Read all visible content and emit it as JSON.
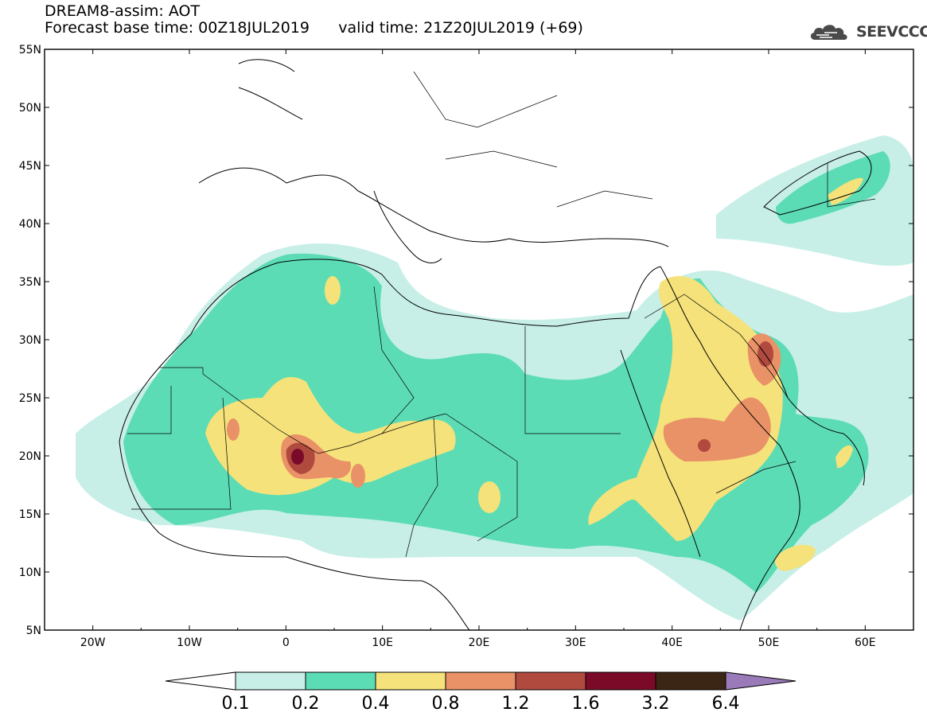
{
  "header": {
    "model_title": "DREAM8-assim: AOT",
    "base_time": "Forecast base time: 00Z18JUL2019",
    "valid_time": "valid time: 21Z20JUL2019 (+69)",
    "logo_text": "SEEVCCC"
  },
  "map": {
    "lon_range": [
      -25,
      65
    ],
    "lat_range": [
      5,
      55
    ],
    "lat_labels": [
      "55N",
      "50N",
      "45N",
      "40N",
      "35N",
      "30N",
      "25N",
      "20N",
      "15N",
      "10N",
      "5N"
    ],
    "lon_labels": [
      "20W",
      "10W",
      "0",
      "10E",
      "20E",
      "30E",
      "40E",
      "50E",
      "60E"
    ]
  },
  "colorbar": {
    "levels": [
      "0.1",
      "0.2",
      "0.4",
      "0.8",
      "1.2",
      "1.6",
      "3.2",
      "6.4"
    ],
    "colors": [
      "#ffffff",
      "#c7efe7",
      "#5cdcb5",
      "#f5e27a",
      "#e99268",
      "#b04a3e",
      "#7b0a29",
      "#3b2514",
      "#9a7ab8"
    ]
  },
  "legend_icon": "cloud-logo-icon"
}
